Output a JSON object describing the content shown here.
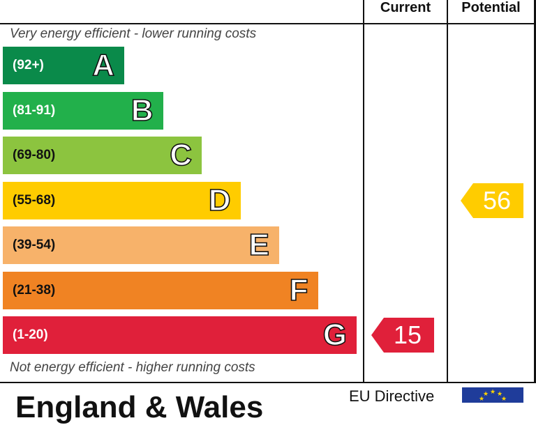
{
  "header": {
    "current_label": "Current",
    "potential_label": "Potential"
  },
  "captions": {
    "top": "Very energy efficient - lower running costs",
    "bottom": "Not energy efficient - higher running costs"
  },
  "chart_data": {
    "type": "bar",
    "title": "",
    "categories": [
      "A",
      "B",
      "C",
      "D",
      "E",
      "F",
      "G"
    ],
    "ranges": [
      "(92+)",
      "(81-91)",
      "(69-80)",
      "(55-68)",
      "(39-54)",
      "(21-38)",
      "(1-20)"
    ],
    "colors": [
      "#0a8a4a",
      "#22b04b",
      "#8cc43f",
      "#ffcc00",
      "#f7b26a",
      "#f08323",
      "#e0203a"
    ],
    "range_text_colors": [
      "#ffffff",
      "#ffffff",
      "#111111",
      "#111111",
      "#111111",
      "#111111",
      "#ffffff"
    ],
    "current": {
      "value": 15,
      "band": "G",
      "color": "#e0203a"
    },
    "potential": {
      "value": 56,
      "band": "D",
      "color": "#ffcc00"
    }
  },
  "footer": {
    "region": "England & Wales",
    "directive": "EU Directive"
  }
}
